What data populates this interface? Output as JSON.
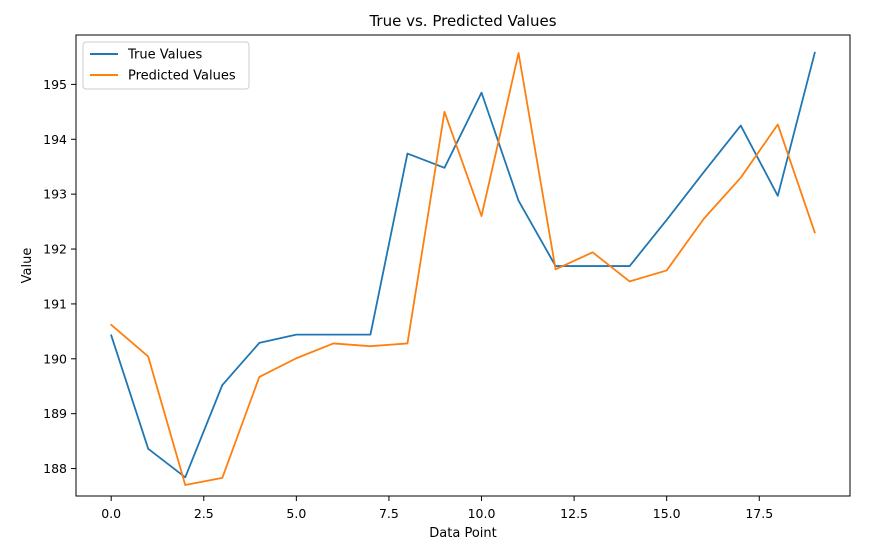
{
  "chart_data": {
    "type": "line",
    "title": "True vs. Predicted Values",
    "xlabel": "Data Point",
    "ylabel": "Value",
    "xlim": [
      -0.95,
      19.95
    ],
    "ylim": [
      187.5,
      195.9
    ],
    "xticks": [
      0.0,
      2.5,
      5.0,
      7.5,
      10.0,
      12.5,
      15.0,
      17.5
    ],
    "xtick_labels": [
      "0.0",
      "2.5",
      "5.0",
      "7.5",
      "10.0",
      "12.5",
      "15.0",
      "17.5"
    ],
    "yticks": [
      188,
      189,
      190,
      191,
      192,
      193,
      194,
      195
    ],
    "ytick_labels": [
      "188",
      "189",
      "190",
      "191",
      "192",
      "193",
      "194",
      "195"
    ],
    "legend_position": "upper-left",
    "grid": false,
    "x": [
      0,
      1,
      2,
      3,
      4,
      5,
      6,
      7,
      8,
      9,
      10,
      11,
      12,
      13,
      14,
      15,
      16,
      17,
      18,
      19
    ],
    "series": [
      {
        "name": "True Values",
        "color": "#1f77b4",
        "values": [
          190.43,
          188.36,
          187.84,
          189.52,
          190.29,
          190.44,
          190.44,
          190.44,
          193.74,
          193.48,
          194.85,
          192.88,
          191.69,
          191.69,
          191.69,
          192.53,
          193.4,
          194.25,
          192.97,
          195.58
        ]
      },
      {
        "name": "Predicted Values",
        "color": "#ff7f0e",
        "values": [
          190.62,
          190.04,
          187.7,
          187.83,
          189.67,
          190.01,
          190.28,
          190.23,
          190.28,
          194.5,
          192.6,
          195.57,
          191.63,
          191.94,
          191.41,
          191.61,
          192.55,
          193.3,
          194.27,
          192.3
        ]
      }
    ]
  }
}
